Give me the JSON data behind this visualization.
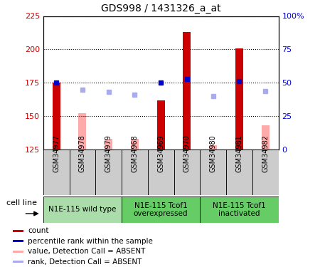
{
  "title": "GDS998 / 1431326_a_at",
  "samples": [
    "GSM34977",
    "GSM34978",
    "GSM34979",
    "GSM34968",
    "GSM34969",
    "GSM34970",
    "GSM34980",
    "GSM34981",
    "GSM34982"
  ],
  "count_values": [
    175,
    null,
    null,
    null,
    162,
    213,
    null,
    201,
    null
  ],
  "count_color": "#cc0000",
  "absent_value_values": [
    null,
    152,
    133,
    133,
    null,
    null,
    128,
    null,
    143
  ],
  "absent_value_color": "#ffaaaa",
  "percentile_values": [
    175,
    null,
    null,
    null,
    175,
    178,
    null,
    176,
    null
  ],
  "percentile_color": "#0000cc",
  "absent_rank_values": [
    null,
    170,
    168,
    166,
    null,
    null,
    165,
    null,
    169
  ],
  "absent_rank_color": "#aaaaee",
  "ylim_left": [
    125,
    225
  ],
  "ylim_right": [
    0,
    100
  ],
  "yticks_left": [
    125,
    150,
    175,
    200,
    225
  ],
  "yticks_right": [
    0,
    25,
    50,
    75,
    100
  ],
  "ytick_labels_left": [
    "125",
    "150",
    "175",
    "200",
    "225"
  ],
  "ytick_labels_right": [
    "0",
    "25",
    "50",
    "75",
    "100%"
  ],
  "left_color": "#cc0000",
  "right_color": "#0000cc",
  "group_data": [
    {
      "start": 0,
      "end": 3,
      "label": "N1E-115 wild type",
      "color": "#aaddaa"
    },
    {
      "start": 3,
      "end": 6,
      "label": "N1E-115 Tcof1\noverexpressed",
      "color": "#66cc66"
    },
    {
      "start": 6,
      "end": 9,
      "label": "N1E-115 Tcof1\ninactivated",
      "color": "#66cc66"
    }
  ],
  "cell_line_label": "cell line",
  "legend": [
    {
      "label": "count",
      "color": "#cc0000"
    },
    {
      "label": "percentile rank within the sample",
      "color": "#0000cc"
    },
    {
      "label": "value, Detection Call = ABSENT",
      "color": "#ffaaaa"
    },
    {
      "label": "rank, Detection Call = ABSENT",
      "color": "#aaaaee"
    }
  ],
  "bar_width": 0.3,
  "sample_bg_color": "#cccccc",
  "plot_bg_color": "#ffffff"
}
